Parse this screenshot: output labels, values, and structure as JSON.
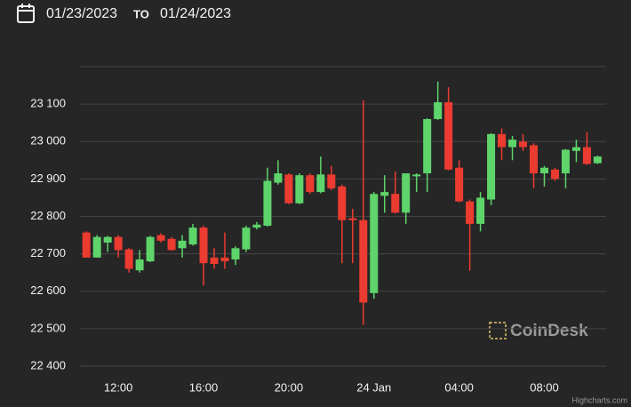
{
  "header": {
    "from": "01/23/2023",
    "separator": "TO",
    "to": "01/24/2023"
  },
  "chart_data": {
    "type": "candlestick",
    "x": [
      10.5,
      11,
      11.5,
      12,
      12.5,
      13,
      13.5,
      14,
      14.5,
      15,
      15.5,
      16,
      16.5,
      17,
      17.5,
      18,
      18.5,
      19,
      19.5,
      20,
      20.5,
      21,
      21.5,
      22,
      22.5,
      23,
      23.5,
      24,
      24.5,
      25,
      25.5,
      26,
      26.5,
      27,
      27.5,
      28,
      28.5,
      29,
      29.5,
      30,
      30.5,
      31,
      31.5,
      32,
      32.5,
      33,
      33.5,
      34,
      34.5
    ],
    "open": [
      22757,
      22690,
      22730,
      22745,
      22712,
      22656,
      22680,
      22750,
      22740,
      22715,
      22725,
      22770,
      22690,
      22690,
      22685,
      22712,
      22770,
      22775,
      22890,
      22912,
      22835,
      22910,
      22865,
      22912,
      22880,
      22795,
      22790,
      22595,
      22855,
      22860,
      22810,
      22907,
      22915,
      23060,
      23105,
      22930,
      22840,
      22780,
      22845,
      23020,
      22985,
      23000,
      22990,
      22915,
      22925,
      22915,
      22975,
      22985,
      22942
    ],
    "high": [
      22760,
      22750,
      22748,
      22750,
      22715,
      22710,
      22748,
      22755,
      22745,
      22750,
      22780,
      22775,
      22715,
      22757,
      22720,
      22775,
      22785,
      22930,
      22950,
      22915,
      22915,
      22915,
      22960,
      22935,
      22885,
      22820,
      23110,
      22865,
      22910,
      22920,
      22915,
      22915,
      23062,
      23160,
      23145,
      22950,
      22845,
      22865,
      23022,
      23035,
      23015,
      23020,
      22995,
      22935,
      22930,
      22980,
      23005,
      23025,
      22962
    ],
    "low": [
      22690,
      22690,
      22705,
      22690,
      22650,
      22650,
      22678,
      22730,
      22708,
      22690,
      22722,
      22615,
      22660,
      22660,
      22670,
      22705,
      22765,
      22773,
      22885,
      22833,
      22833,
      22860,
      22862,
      22870,
      22675,
      22675,
      22510,
      22580,
      22810,
      22808,
      22780,
      22865,
      22865,
      23058,
      22923,
      22838,
      22655,
      22760,
      22830,
      22950,
      22950,
      22975,
      22875,
      22880,
      22895,
      22875,
      22945,
      22938,
      22940
    ],
    "close": [
      22690,
      22745,
      22745,
      22710,
      22660,
      22685,
      22745,
      22735,
      22710,
      22735,
      22770,
      22675,
      22673,
      22680,
      22715,
      22770,
      22778,
      22895,
      22915,
      22835,
      22910,
      22865,
      22912,
      22875,
      22790,
      22790,
      22570,
      22860,
      22865,
      22810,
      22915,
      22912,
      23060,
      23105,
      22925,
      22840,
      22780,
      22850,
      23020,
      22985,
      23005,
      22985,
      22915,
      22930,
      22900,
      22978,
      22985,
      22940,
      22960
    ],
    "up_color": "#5ed46b",
    "down_color": "#ec3b30",
    "xlim": [
      10.2,
      34.9
    ],
    "xticks": [
      {
        "value": 12,
        "label": "12:00"
      },
      {
        "value": 16,
        "label": "16:00"
      },
      {
        "value": 20,
        "label": "20:00"
      },
      {
        "value": 24,
        "label": "24 Jan"
      },
      {
        "value": 28,
        "label": "04:00"
      },
      {
        "value": 32,
        "label": "08:00"
      }
    ],
    "ylim": [
      22400,
      23200
    ],
    "yticks": [
      {
        "value": 22400,
        "label": "22 400"
      },
      {
        "value": 22500,
        "label": "22 500"
      },
      {
        "value": 22600,
        "label": "22 600"
      },
      {
        "value": 22700,
        "label": "22 700"
      },
      {
        "value": 22800,
        "label": "22 800"
      },
      {
        "value": 22900,
        "label": "22 900"
      },
      {
        "value": 23000,
        "label": "23 000"
      },
      {
        "value": 23100,
        "label": "23 100"
      }
    ],
    "grid": true,
    "watermark": "CoinDesk",
    "credit": "Highcharts.com"
  }
}
